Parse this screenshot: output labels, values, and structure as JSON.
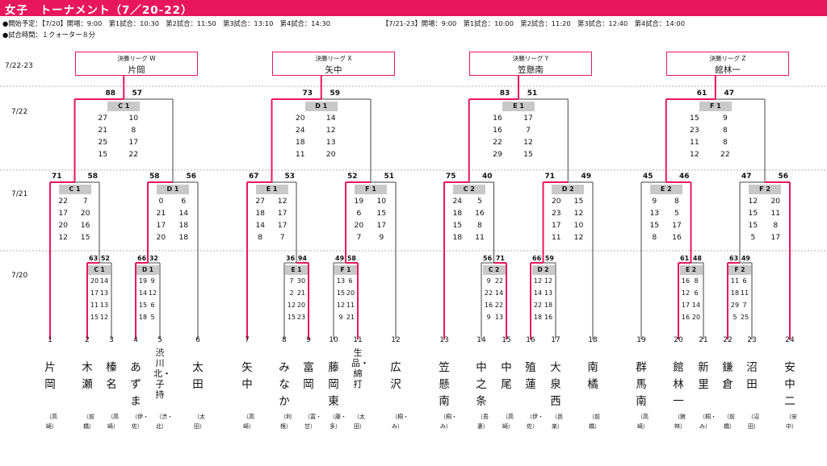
{
  "header": {
    "title": "女子　トーナメント（7／20-22）",
    "color": "#e8175d"
  },
  "info": {
    "line1a": "●開始予定：【7/20】開場：9:00　第1試合：10:30　第2試合：11:50　第3試合：13:10　第4試合：14:30",
    "line1b": "【7/21-23】開場：9:00　第1試合：10:00　第2試合：11:20　第3試合：12:40　第4試合：14:00",
    "line2": "●試合時間：１クォーター８分"
  },
  "dates": [
    "7/22-23",
    "7/22",
    "7/21",
    "7/20"
  ],
  "finals": [
    {
      "label": "決勝リーグ W",
      "winner": "片岡"
    },
    {
      "label": "決勝リーグ X",
      "winner": "矢中"
    },
    {
      "label": "決勝リーグ Y",
      "winner": "笠懸南"
    },
    {
      "label": "決勝リーグ Z",
      "winner": "館林一"
    }
  ],
  "games": [
    {
      "id": "C 1",
      "s": [
        "63",
        "52"
      ],
      "q": [
        [
          "20",
          "14"
        ],
        [
          "17",
          "13"
        ],
        [
          "11",
          "13"
        ],
        [
          "15",
          "12"
        ]
      ]
    },
    {
      "id": "D 1",
      "s": [
        "66",
        "32"
      ],
      "q": [
        [
          "19",
          "9"
        ],
        [
          "14",
          "12"
        ],
        [
          "15",
          "6"
        ],
        [
          "18",
          "5"
        ]
      ]
    },
    {
      "id": "E 1",
      "s": [
        "36",
        "94"
      ],
      "q": [
        [
          "7",
          "30"
        ],
        [
          "2",
          "21"
        ],
        [
          "12",
          "20"
        ],
        [
          "15",
          "23"
        ]
      ]
    },
    {
      "id": "F 1",
      "s": [
        "49",
        "58"
      ],
      "q": [
        [
          "13",
          "6"
        ],
        [
          "15",
          "20"
        ],
        [
          "12",
          "11"
        ],
        [
          "9",
          "21"
        ]
      ]
    },
    {
      "id": "C 2",
      "s": [
        "56",
        "71"
      ],
      "q": [
        [
          "9",
          "22"
        ],
        [
          "22",
          "14"
        ],
        [
          "16",
          "22"
        ],
        [
          "9",
          "13"
        ]
      ]
    },
    {
      "id": "D 2",
      "s": [
        "66",
        "59"
      ],
      "q": [
        [
          "12",
          "12"
        ],
        [
          "14",
          "13"
        ],
        [
          "22",
          "18"
        ],
        [
          "18",
          "16"
        ]
      ]
    },
    {
      "id": "E 2",
      "s": [
        "61",
        "48"
      ],
      "q": [
        [
          "16",
          "8"
        ],
        [
          "12",
          "6"
        ],
        [
          "17",
          "14"
        ],
        [
          "16",
          "20"
        ]
      ]
    },
    {
      "id": "F 2",
      "s": [
        "63",
        "49"
      ],
      "q": [
        [
          "11",
          "6"
        ],
        [
          "18",
          "11"
        ],
        [
          "29",
          "7"
        ],
        [
          "5",
          "25"
        ]
      ]
    },
    {
      "id": "C 1",
      "s": [
        "71",
        "58"
      ],
      "q": [
        [
          "22",
          "7"
        ],
        [
          "17",
          "20"
        ],
        [
          "20",
          "16"
        ],
        [
          "12",
          "15"
        ]
      ]
    },
    {
      "id": "D 1",
      "s": [
        "58",
        "56"
      ],
      "q": [
        [
          "0",
          "6"
        ],
        [
          "21",
          "14"
        ],
        [
          "17",
          "18"
        ],
        [
          "20",
          "18"
        ]
      ]
    },
    {
      "id": "E 1",
      "s": [
        "67",
        "53"
      ],
      "q": [
        [
          "27",
          "12"
        ],
        [
          "18",
          "17"
        ],
        [
          "14",
          "17"
        ],
        [
          "8",
          "7"
        ]
      ]
    },
    {
      "id": "F 1",
      "s": [
        "52",
        "51"
      ],
      "q": [
        [
          "19",
          "10"
        ],
        [
          "6",
          "15"
        ],
        [
          "20",
          "17"
        ],
        [
          "7",
          "9"
        ]
      ]
    },
    {
      "id": "C 2",
      "s": [
        "75",
        "40"
      ],
      "q": [
        [
          "24",
          "5"
        ],
        [
          "18",
          "16"
        ],
        [
          "15",
          "8"
        ],
        [
          "18",
          "11"
        ]
      ]
    },
    {
      "id": "D 2",
      "s": [
        "71",
        "49"
      ],
      "q": [
        [
          "20",
          "15"
        ],
        [
          "23",
          "12"
        ],
        [
          "17",
          "10"
        ],
        [
          "11",
          "12"
        ]
      ]
    },
    {
      "id": "E 2",
      "s": [
        "45",
        "46"
      ],
      "q": [
        [
          "9",
          "8"
        ],
        [
          "13",
          "5"
        ],
        [
          "15",
          "17"
        ],
        [
          "8",
          "16"
        ]
      ]
    },
    {
      "id": "F 2",
      "s": [
        "47",
        "56"
      ],
      "q": [
        [
          "12",
          "20"
        ],
        [
          "15",
          "11"
        ],
        [
          "15",
          "8"
        ],
        [
          "5",
          "17"
        ]
      ]
    },
    {
      "id": "C 1",
      "s": [
        "88",
        "57"
      ],
      "q": [
        [
          "27",
          "10"
        ],
        [
          "21",
          "8"
        ],
        [
          "25",
          "17"
        ],
        [
          "15",
          "22"
        ]
      ]
    },
    {
      "id": "D 1",
      "s": [
        "73",
        "59"
      ],
      "q": [
        [
          "20",
          "14"
        ],
        [
          "24",
          "12"
        ],
        [
          "18",
          "13"
        ],
        [
          "11",
          "20"
        ]
      ]
    },
    {
      "id": "E 1",
      "s": [
        "83",
        "51"
      ],
      "q": [
        [
          "16",
          "17"
        ],
        [
          "16",
          "7"
        ],
        [
          "22",
          "12"
        ],
        [
          "29",
          "15"
        ]
      ]
    },
    {
      "id": "F 1",
      "s": [
        "61",
        "47"
      ],
      "q": [
        [
          "15",
          "9"
        ],
        [
          "23",
          "8"
        ],
        [
          "11",
          "8"
        ],
        [
          "12",
          "22"
        ]
      ]
    }
  ],
  "teams": [
    {
      "n": "1",
      "name": "片岡",
      "dist": "（高崎）"
    },
    {
      "n": "2",
      "name": "木瀬",
      "dist": "（前橋）"
    },
    {
      "n": "3",
      "name": "榛名",
      "dist": "（高崎）"
    },
    {
      "n": "4",
      "name": "あずま",
      "dist": "（伊・佐）"
    },
    {
      "n": "5",
      "name": "渋川北・子持",
      "dist": "（渋・北）"
    },
    {
      "n": "6",
      "name": "太田",
      "dist": "（太田）"
    },
    {
      "n": "7",
      "name": "矢中",
      "dist": "（高崎）"
    },
    {
      "n": "8",
      "name": "みなか",
      "dist": "（利根）"
    },
    {
      "n": "9",
      "name": "富岡",
      "dist": "（富・甘）"
    },
    {
      "n": "10",
      "name": "藤岡東",
      "dist": "（藤・多）"
    },
    {
      "n": "11",
      "name": "生品・綿打",
      "dist": "（太田）"
    },
    {
      "n": "12",
      "name": "広沢",
      "dist": "（桐・み）"
    },
    {
      "n": "13",
      "name": "笠懸南",
      "dist": "（桐・み）"
    },
    {
      "n": "14",
      "name": "中之条",
      "dist": "（吾妻）"
    },
    {
      "n": "15",
      "name": "中尾",
      "dist": "（高崎）"
    },
    {
      "n": "16",
      "name": "殖蓮",
      "dist": "（伊・佐）"
    },
    {
      "n": "17",
      "name": "大泉西",
      "dist": "（邑楽）"
    },
    {
      "n": "18",
      "name": "南橘",
      "dist": "（前橋）"
    },
    {
      "n": "19",
      "name": "群馬南",
      "dist": "（高崎）"
    },
    {
      "n": "20",
      "name": "館林一",
      "dist": "（館林）"
    },
    {
      "n": "21",
      "name": "新里",
      "dist": "（桐・み）"
    },
    {
      "n": "22",
      "name": "鎌倉",
      "dist": "（前橋）"
    },
    {
      "n": "23",
      "name": "沼田",
      "dist": "（沼田）"
    },
    {
      "n": "24",
      "name": "安中二",
      "dist": "（安中）"
    }
  ]
}
